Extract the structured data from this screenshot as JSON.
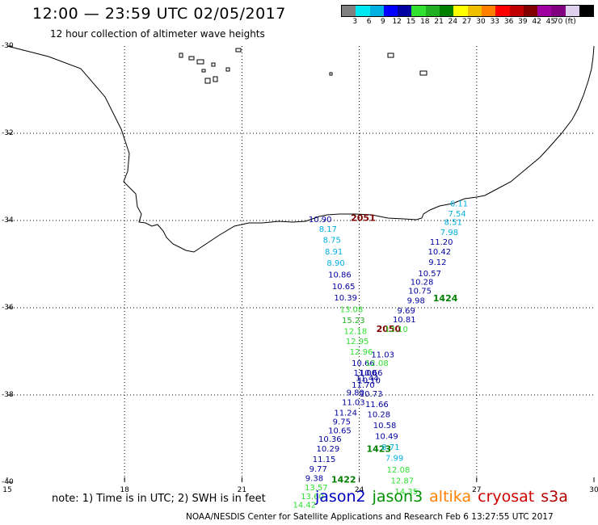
{
  "header": {
    "title": "12:00 — 23:59 UTC 02/05/2017",
    "subtitle": "12 hour collection of altimeter wave heights"
  },
  "legend": {
    "colors": [
      "#808080",
      "#00e8f0",
      "#00b0e0",
      "#0000ff",
      "#0000a0",
      "#30e030",
      "#20b020",
      "#008000",
      "#ffff00",
      "#f0c000",
      "#ff8000",
      "#ff0000",
      "#c00000",
      "#800000",
      "#a000a0",
      "#800080",
      "#e0d0f0",
      "#000000"
    ],
    "labels": [
      "3",
      "6",
      "9",
      "12",
      "15",
      "18",
      "21",
      "24",
      "27",
      "30",
      "33",
      "36",
      "39",
      "42",
      "45",
      "70 (ft)"
    ]
  },
  "axes": {
    "lat_labels": [
      "-30",
      "-32",
      "-34",
      "-36",
      "-38",
      "-40"
    ],
    "lon_labels": [
      "15",
      "18",
      "21",
      "24",
      "27",
      "30"
    ]
  },
  "time_labels": [
    {
      "text": "2051",
      "lat": -33.95,
      "lon": 24.1,
      "color": "#800000"
    },
    {
      "text": "2050",
      "lat": -36.5,
      "lon": 24.75,
      "color": "#800000"
    },
    {
      "text": "1424",
      "lat": -35.8,
      "lon": 26.2,
      "color": "#008000"
    },
    {
      "text": "1423",
      "lat": -39.25,
      "lon": 24.5,
      "color": "#008000"
    },
    {
      "text": "1422",
      "lat": -39.95,
      "lon": 23.6,
      "color": "#008000"
    }
  ],
  "observations": [
    {
      "text": "10.90",
      "lat": -33.98,
      "lon": 23.0,
      "color": "#0000a0"
    },
    {
      "text": "8.17",
      "lat": -34.2,
      "lon": 23.2,
      "color": "#00b0e0"
    },
    {
      "text": "8.75",
      "lat": -34.45,
      "lon": 23.3,
      "color": "#00b0e0"
    },
    {
      "text": "8.91",
      "lat": -34.72,
      "lon": 23.35,
      "color": "#00b0e0"
    },
    {
      "text": "8.90",
      "lat": -34.98,
      "lon": 23.4,
      "color": "#00b0e0"
    },
    {
      "text": "10.86",
      "lat": -35.25,
      "lon": 23.5,
      "color": "#0000a0"
    },
    {
      "text": "10.65",
      "lat": -35.52,
      "lon": 23.6,
      "color": "#0000a0"
    },
    {
      "text": "10.39",
      "lat": -35.78,
      "lon": 23.65,
      "color": "#0000a0"
    },
    {
      "text": "13.08",
      "lat": -36.05,
      "lon": 23.8,
      "color": "#30e030"
    },
    {
      "text": "15.23",
      "lat": -36.3,
      "lon": 23.85,
      "color": "#20b020"
    },
    {
      "text": "12.18",
      "lat": -36.55,
      "lon": 23.9,
      "color": "#30e030"
    },
    {
      "text": "12.95",
      "lat": -36.78,
      "lon": 23.95,
      "color": "#30e030"
    },
    {
      "text": "12.96",
      "lat": -37.02,
      "lon": 24.05,
      "color": "#30e030"
    },
    {
      "text": "10.66",
      "lat": -37.28,
      "lon": 24.1,
      "color": "#0000a0"
    },
    {
      "text": "11.00",
      "lat": -37.5,
      "lon": 24.15,
      "color": "#0000a0"
    },
    {
      "text": "11.44",
      "lat": -37.62,
      "lon": 24.2,
      "color": "#0000a0"
    },
    {
      "text": "11.70",
      "lat": -37.78,
      "lon": 24.1,
      "color": "#0000a0"
    },
    {
      "text": "9.80",
      "lat": -37.95,
      "lon": 23.9,
      "color": "#0000a0"
    },
    {
      "text": "11.03",
      "lat": -38.18,
      "lon": 23.85,
      "color": "#0000a0"
    },
    {
      "text": "11.24",
      "lat": -38.42,
      "lon": 23.65,
      "color": "#0000a0"
    },
    {
      "text": "9.75",
      "lat": -38.62,
      "lon": 23.55,
      "color": "#0000a0"
    },
    {
      "text": "10.65",
      "lat": -38.82,
      "lon": 23.5,
      "color": "#0000a0"
    },
    {
      "text": "10.36",
      "lat": -39.02,
      "lon": 23.25,
      "color": "#0000a0"
    },
    {
      "text": "10.29",
      "lat": -39.24,
      "lon": 23.2,
      "color": "#0000a0"
    },
    {
      "text": "11.15",
      "lat": -39.48,
      "lon": 23.1,
      "color": "#0000a0"
    },
    {
      "text": "9.77",
      "lat": -39.7,
      "lon": 22.95,
      "color": "#0000a0"
    },
    {
      "text": "9.38",
      "lat": -39.92,
      "lon": 22.85,
      "color": "#0000a0"
    },
    {
      "text": "13.57",
      "lat": -40.13,
      "lon": 22.9,
      "color": "#30e030"
    },
    {
      "text": "13.60",
      "lat": -40.33,
      "lon": 22.8,
      "color": "#30e030"
    },
    {
      "text": "14.42",
      "lat": -40.53,
      "lon": 22.6,
      "color": "#30e030"
    },
    {
      "text": "6.11",
      "lat": -33.62,
      "lon": 26.55,
      "color": "#00b0e0"
    },
    {
      "text": "7.54",
      "lat": -33.85,
      "lon": 26.5,
      "color": "#00b0e0"
    },
    {
      "text": "8.51",
      "lat": -34.05,
      "lon": 26.4,
      "color": "#00b0e0"
    },
    {
      "text": "7.98",
      "lat": -34.28,
      "lon": 26.3,
      "color": "#00b0e0"
    },
    {
      "text": "11.20",
      "lat": -34.5,
      "lon": 26.1,
      "color": "#0000a0"
    },
    {
      "text": "10.42",
      "lat": -34.72,
      "lon": 26.05,
      "color": "#0000a0"
    },
    {
      "text": "9.12",
      "lat": -34.96,
      "lon": 26.0,
      "color": "#0000a0"
    },
    {
      "text": "10.57",
      "lat": -35.22,
      "lon": 25.8,
      "color": "#0000a0"
    },
    {
      "text": "10.28",
      "lat": -35.42,
      "lon": 25.6,
      "color": "#0000a0"
    },
    {
      "text": "10.75",
      "lat": -35.62,
      "lon": 25.55,
      "color": "#0000a0"
    },
    {
      "text": "9.98",
      "lat": -35.84,
      "lon": 25.45,
      "color": "#0000a0"
    },
    {
      "text": "9.69",
      "lat": -36.07,
      "lon": 25.2,
      "color": "#0000a0"
    },
    {
      "text": "10.81",
      "lat": -36.28,
      "lon": 25.15,
      "color": "#0000a0"
    },
    {
      "text": "12.10",
      "lat": -36.5,
      "lon": 24.95,
      "color": "#30e030"
    },
    {
      "text": "11.03",
      "lat": -37.08,
      "lon": 24.6,
      "color": "#0000a0"
    },
    {
      "text": "12.08",
      "lat": -37.28,
      "lon": 24.45,
      "color": "#30e030"
    },
    {
      "text": "10.66",
      "lat": -37.5,
      "lon": 24.3,
      "color": "#0000a0"
    },
    {
      "text": "10.10",
      "lat": -37.68,
      "lon": 24.25,
      "color": "#0000a0"
    },
    {
      "text": "10.73",
      "lat": -37.98,
      "lon": 24.3,
      "color": "#0000a0"
    },
    {
      "text": "11.66",
      "lat": -38.22,
      "lon": 24.45,
      "color": "#0000a0"
    },
    {
      "text": "10.28",
      "lat": -38.45,
      "lon": 24.5,
      "color": "#0000a0"
    },
    {
      "text": "10.58",
      "lat": -38.7,
      "lon": 24.65,
      "color": "#0000a0"
    },
    {
      "text": "10.49",
      "lat": -38.95,
      "lon": 24.7,
      "color": "#0000a0"
    },
    {
      "text": "8.71",
      "lat": -39.2,
      "lon": 24.8,
      "color": "#00b0e0"
    },
    {
      "text": "7.99",
      "lat": -39.45,
      "lon": 24.9,
      "color": "#00b0e0"
    },
    {
      "text": "12.08",
      "lat": -39.72,
      "lon": 25.0,
      "color": "#30e030"
    },
    {
      "text": "12.87",
      "lat": -39.97,
      "lon": 25.1,
      "color": "#30e030"
    },
    {
      "text": "14.35",
      "lat": -40.22,
      "lon": 25.2,
      "color": "#30e030"
    }
  ],
  "note": "note: 1) Time is in UTC; 2) SWH is in feet",
  "satellites": [
    {
      "name": "jason2",
      "color": "#0000c0"
    },
    {
      "name": "jason3",
      "color": "#009000"
    },
    {
      "name": "altika",
      "color": "#ff8000"
    },
    {
      "name": "cryosat",
      "color": "#d00000"
    },
    {
      "name": "s3a",
      "color": "#b00000"
    }
  ],
  "footer": "NOAA/NESDIS Center for Satellite Applications and Research   Feb  6 13:27:55 UTC 2017"
}
